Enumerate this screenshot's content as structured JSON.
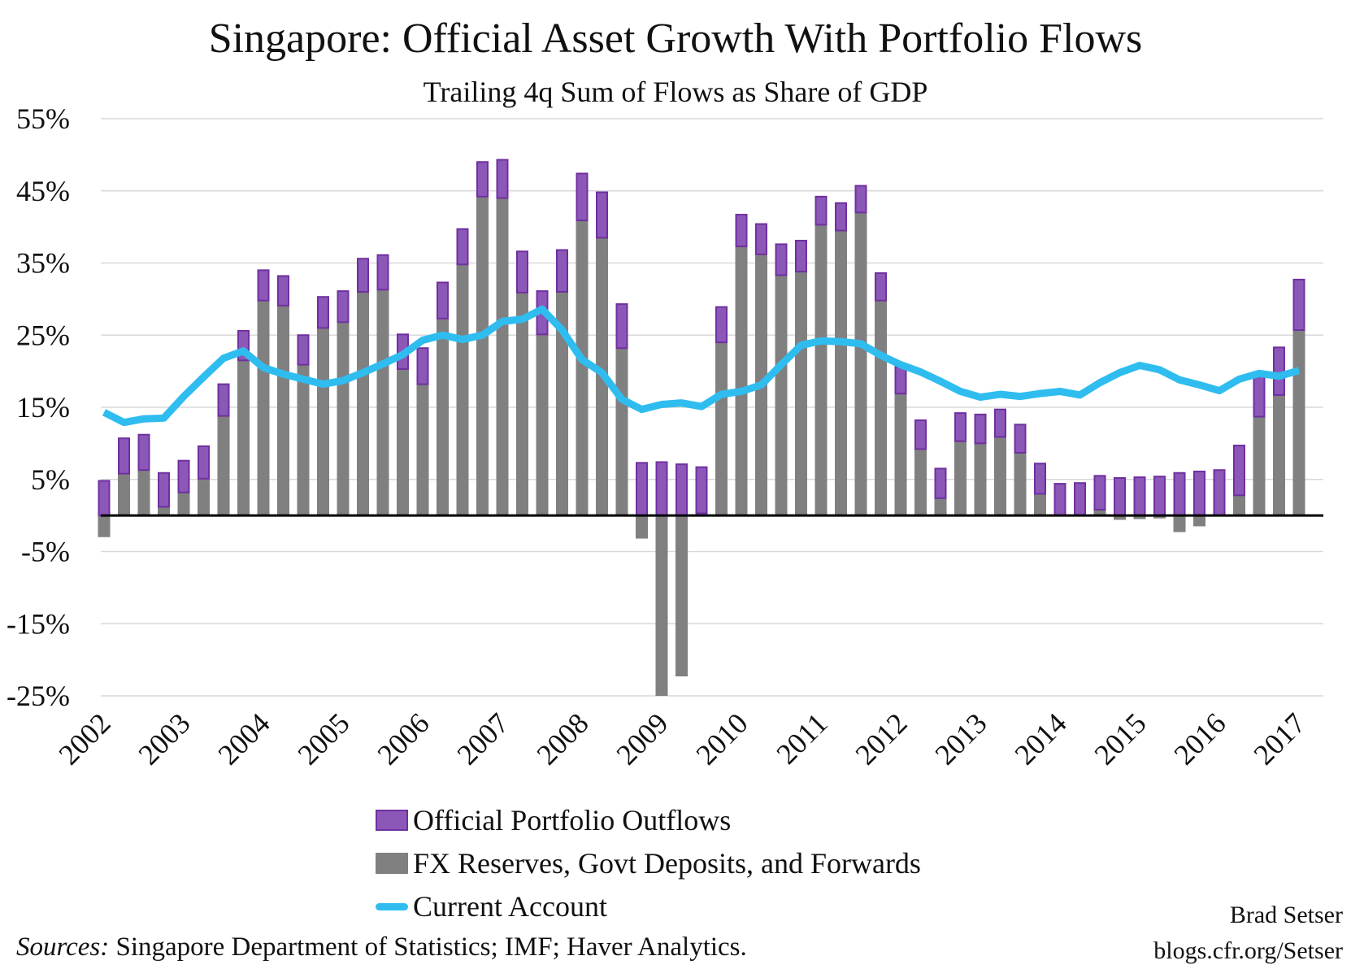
{
  "chart_data": {
    "type": "bar",
    "stacked": true,
    "title": "Singapore: Official Asset Growth With Portfolio Flows",
    "subtitle": "Trailing 4q Sum of Flows as Share of GDP",
    "ylim": [
      -25,
      55
    ],
    "yticks": [
      "55%",
      "45%",
      "35%",
      "25%",
      "15%",
      "5%",
      "-5%",
      "-15%",
      "-25%"
    ],
    "ytick_values": [
      55,
      45,
      35,
      25,
      15,
      5,
      -5,
      -15,
      -25
    ],
    "xtick_labels": [
      "2002",
      "2003",
      "2004",
      "2005",
      "2006",
      "2007",
      "2008",
      "2009",
      "2010",
      "2011",
      "2012",
      "2013",
      "2014",
      "2015",
      "2016",
      "2017"
    ],
    "grid": true,
    "legend_position": "bottom",
    "colors": {
      "outflows": "#8b58b8",
      "outflows_border": "#7030a0",
      "fx": "#808080",
      "ca": "#2fbdf0"
    },
    "series": [
      {
        "name": "Official Portfolio Outflows",
        "kind": "bar",
        "values": [
          4.8,
          4.9,
          4.9,
          4.7,
          4.4,
          4.5,
          4.4,
          4.1,
          4.2,
          4.1,
          4.1,
          4.3,
          4.3,
          4.6,
          4.8,
          4.8,
          5.0,
          5.0,
          4.9,
          4.8,
          5.3,
          5.7,
          6.0,
          5.8,
          6.5,
          6.3,
          6.1,
          7.3,
          7.4,
          7.1,
          6.4,
          4.9,
          4.4,
          4.2,
          4.3,
          4.3,
          3.9,
          3.8,
          3.7,
          3.8,
          3.7,
          4.0,
          4.1,
          3.9,
          4.0,
          3.8,
          3.9,
          4.2,
          4.4,
          4.5,
          4.7,
          5.2,
          5.3,
          5.4,
          5.9,
          6.1,
          6.3,
          6.9,
          6.2,
          6.6,
          7.0
        ]
      },
      {
        "name": "FX Reserves, Govt Deposits, and Forwards",
        "kind": "bar",
        "values": [
          -3.0,
          5.8,
          6.3,
          1.2,
          3.2,
          5.1,
          13.8,
          21.5,
          29.8,
          29.1,
          20.9,
          26.0,
          26.8,
          31.0,
          31.3,
          20.3,
          18.2,
          27.3,
          34.8,
          44.2,
          44.0,
          30.9,
          25.1,
          31.0,
          40.9,
          38.5,
          23.2,
          -3.2,
          -25.0,
          -22.3,
          0.3,
          24.0,
          37.3,
          36.2,
          33.3,
          33.8,
          40.3,
          39.5,
          42.0,
          29.8,
          16.9,
          9.2,
          2.4,
          10.3,
          10.0,
          10.9,
          8.7,
          3.0,
          0.0,
          0.0,
          0.8,
          -0.6,
          -0.5,
          -0.4,
          -2.3,
          -1.5,
          0.0,
          2.8,
          13.7,
          16.7,
          25.7
        ]
      },
      {
        "name": "Current Account",
        "kind": "line",
        "values": [
          14.3,
          12.9,
          13.4,
          13.5,
          16.5,
          19.2,
          21.8,
          22.8,
          20.5,
          19.6,
          18.9,
          18.2,
          18.7,
          19.8,
          21.0,
          22.3,
          24.3,
          25.0,
          24.4,
          25.0,
          26.9,
          27.2,
          28.6,
          25.7,
          21.6,
          19.8,
          16.1,
          14.7,
          15.4,
          15.6,
          15.1,
          16.8,
          17.2,
          18.1,
          20.9,
          23.6,
          24.2,
          24.1,
          23.8,
          22.2,
          20.9,
          19.9,
          18.6,
          17.2,
          16.4,
          16.8,
          16.5,
          16.9,
          17.2,
          16.7,
          18.4,
          19.8,
          20.8,
          20.2,
          18.8,
          18.1,
          17.3,
          18.9,
          19.7,
          19.3,
          20.1
        ]
      }
    ]
  },
  "legend": {
    "items": [
      "Official Portfolio Outflows",
      "FX Reserves, Govt Deposits, and Forwards",
      "Current Account"
    ]
  },
  "footer": {
    "sources_label": "Sources:",
    "sources_text": " Singapore Department of Statistics; IMF; Haver Analytics.",
    "author": "Brad Setser",
    "site": "blogs.cfr.org/Setser"
  }
}
